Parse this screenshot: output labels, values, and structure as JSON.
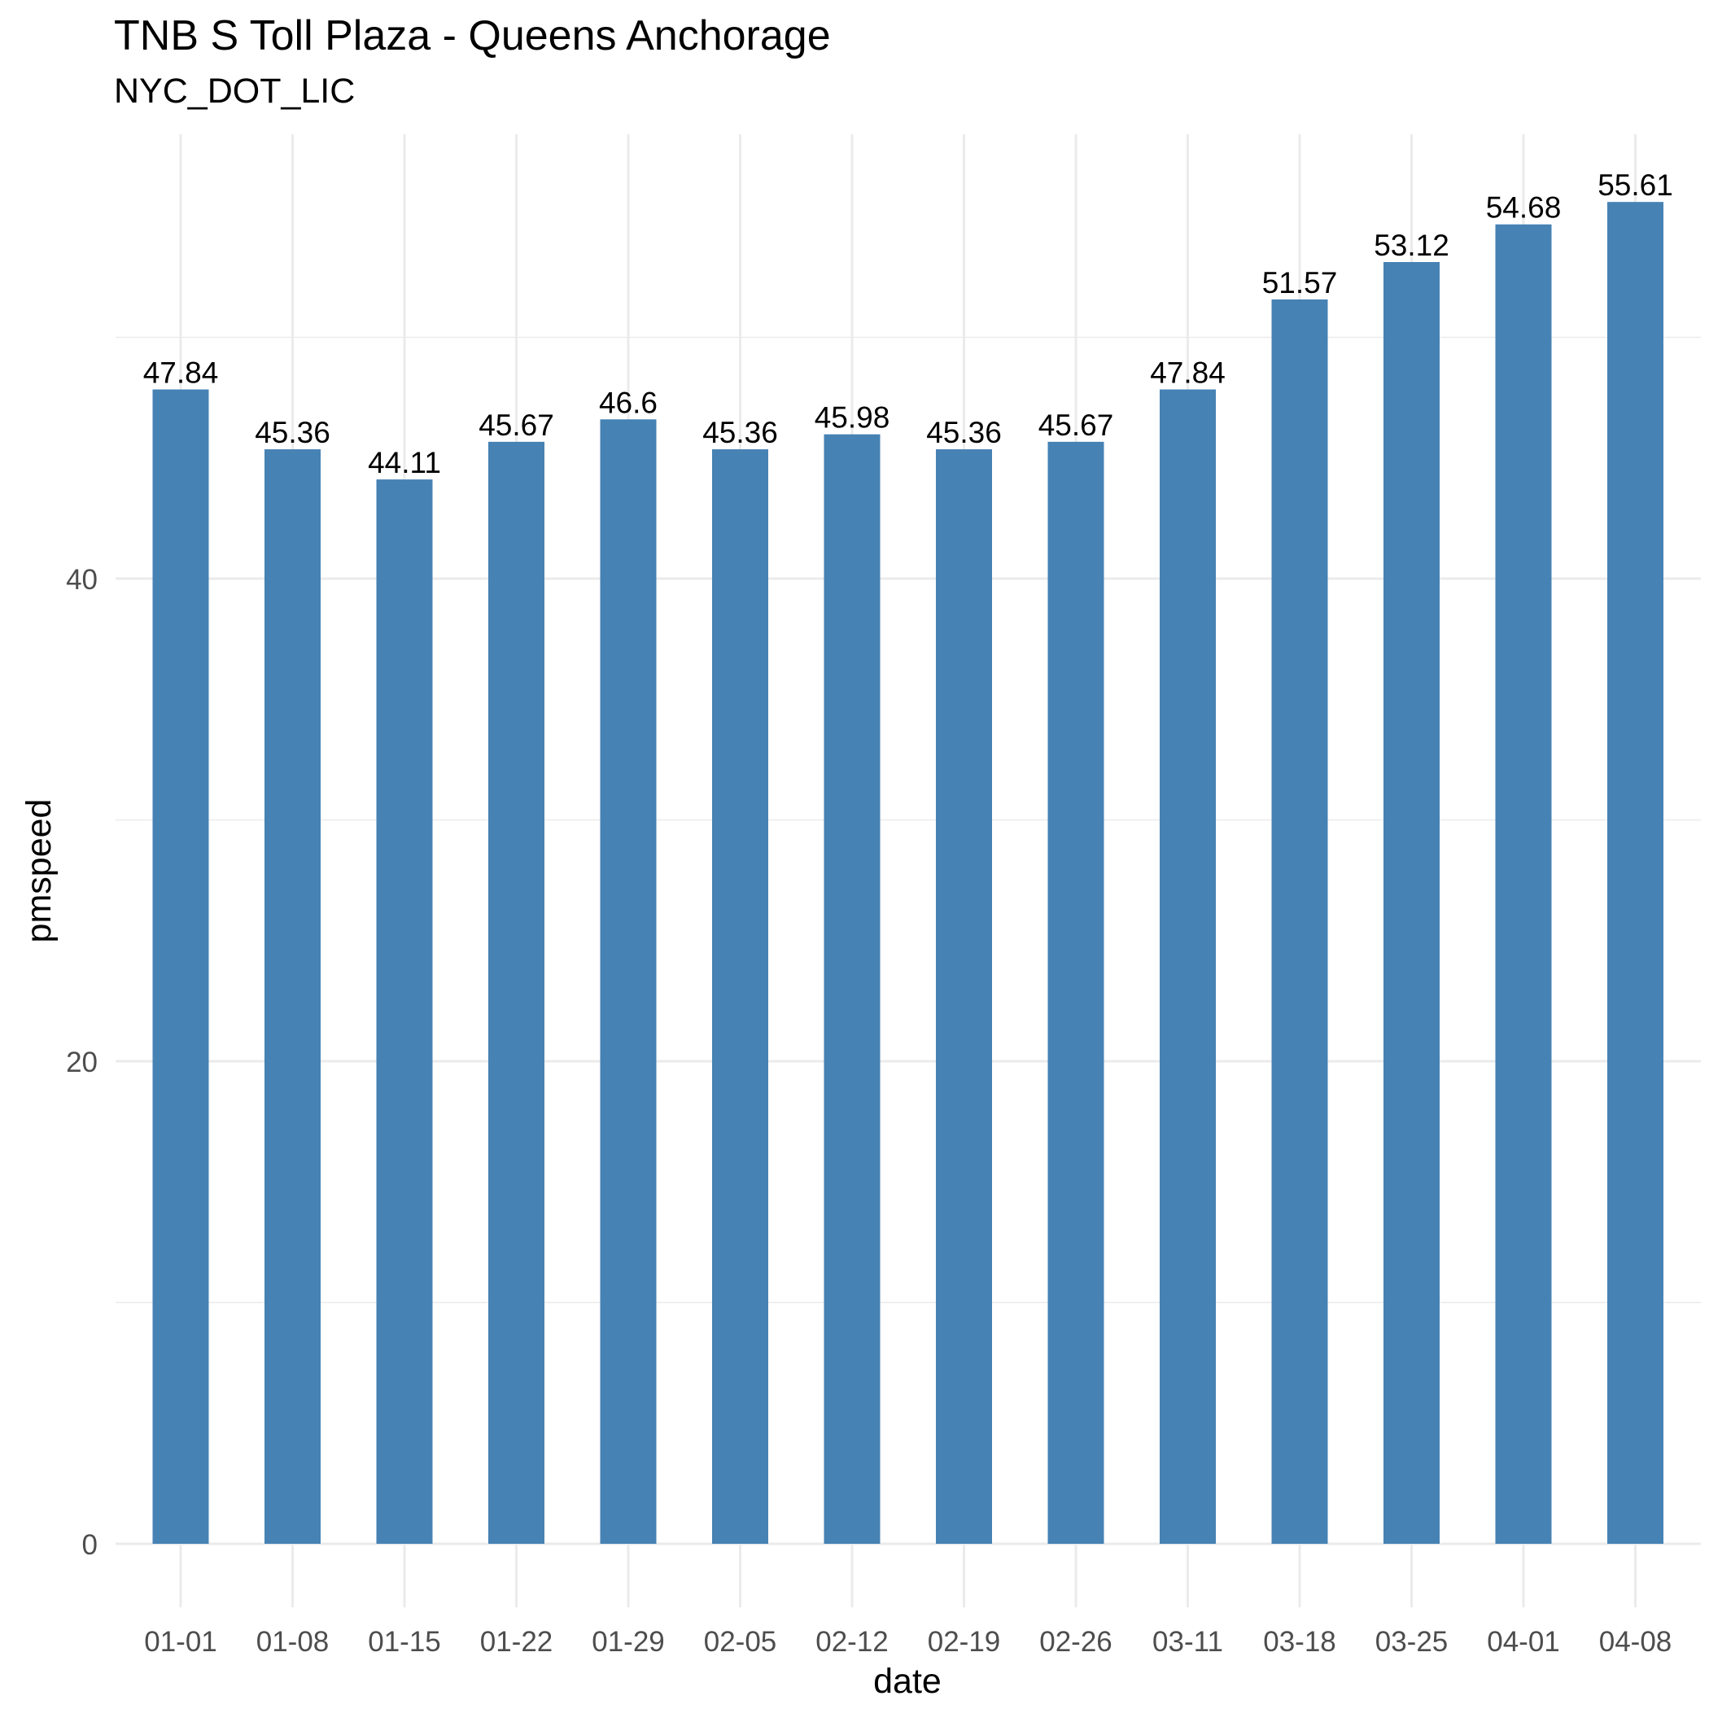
{
  "chart_data": {
    "type": "bar",
    "title": "TNB S Toll Plaza - Queens Anchorage",
    "subtitle": "NYC_DOT_LIC",
    "xlabel": "date",
    "ylabel": "pmspeed",
    "categories": [
      "01-01",
      "01-08",
      "01-15",
      "01-22",
      "01-29",
      "02-05",
      "02-12",
      "02-19",
      "02-26",
      "03-11",
      "03-18",
      "03-25",
      "04-01",
      "04-08"
    ],
    "values": [
      47.84,
      45.36,
      44.11,
      45.67,
      46.6,
      45.36,
      45.98,
      45.36,
      45.67,
      47.84,
      51.57,
      53.12,
      54.68,
      55.61
    ],
    "data_labels": [
      "47.84",
      "45.36",
      "44.11",
      "45.67",
      "46.6",
      "45.36",
      "45.98",
      "45.36",
      "45.67",
      "47.84",
      "51.57",
      "53.12",
      "54.68",
      "55.61"
    ],
    "y_ticks": [
      "0",
      "20",
      "40"
    ],
    "ylim": [
      0,
      58.4
    ],
    "grid": true,
    "legend": "none",
    "colors": {
      "bar": "#4682B4",
      "grid": "#EBEBEB",
      "tick_text": "#4D4D4D",
      "text": "#000000"
    }
  }
}
